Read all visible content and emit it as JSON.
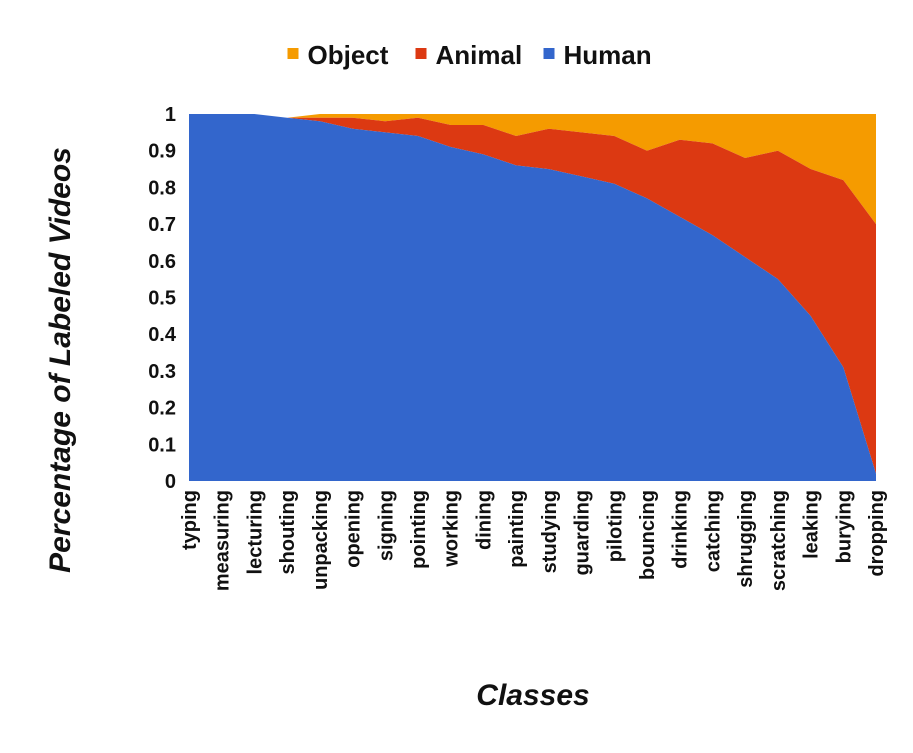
{
  "chart_data": {
    "type": "area",
    "stacked": true,
    "normalized": true,
    "title": "",
    "xlabel": "Classes",
    "ylabel": "Percentage of Labeled Videos",
    "ylim": [
      0,
      1
    ],
    "yticks": [
      "0",
      "0.1",
      "0.2",
      "0.3",
      "0.4",
      "0.5",
      "0.6",
      "0.7",
      "0.8",
      "0.9",
      "1"
    ],
    "categories": [
      "typing",
      "measuring",
      "lecturing",
      "shouting",
      "unpacking",
      "opening",
      "signing",
      "pointing",
      "working",
      "dining",
      "painting",
      "studying",
      "guarding",
      "piloting",
      "bouncing",
      "drinking",
      "catching",
      "shrugging",
      "scratching",
      "leaking",
      "burying",
      "dropping"
    ],
    "legend_position": "top",
    "series": [
      {
        "name": "Object",
        "color": "#F59B00",
        "values": [
          0.0,
          0.0,
          0.0,
          0.0,
          0.01,
          0.01,
          0.02,
          0.01,
          0.03,
          0.03,
          0.06,
          0.04,
          0.05,
          0.06,
          0.1,
          0.07,
          0.08,
          0.12,
          0.1,
          0.15,
          0.18,
          0.3
        ]
      },
      {
        "name": "Animal",
        "color": "#DC3912",
        "values": [
          0.0,
          0.0,
          0.0,
          0.0,
          0.01,
          0.03,
          0.03,
          0.05,
          0.06,
          0.08,
          0.08,
          0.11,
          0.12,
          0.13,
          0.13,
          0.21,
          0.25,
          0.27,
          0.35,
          0.4,
          0.51,
          0.68
        ]
      },
      {
        "name": "Human",
        "color": "#3366CC",
        "values": [
          1.0,
          1.0,
          1.0,
          0.99,
          0.98,
          0.96,
          0.95,
          0.94,
          0.91,
          0.89,
          0.86,
          0.85,
          0.83,
          0.81,
          0.77,
          0.72,
          0.67,
          0.61,
          0.55,
          0.45,
          0.31,
          0.02
        ]
      }
    ]
  }
}
